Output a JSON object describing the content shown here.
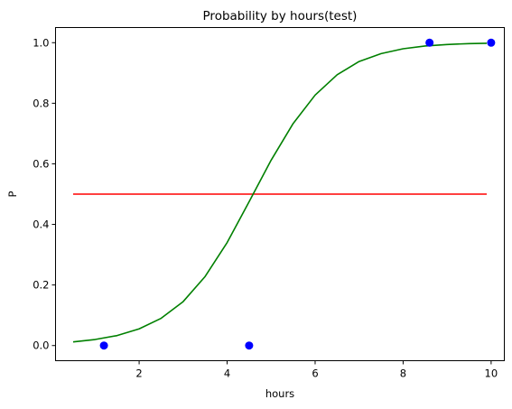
{
  "chart_data": {
    "type": "line",
    "title": "Probability by hours(test)",
    "xlabel": "hours",
    "ylabel": "P",
    "xlim": [
      0.1,
      10.3
    ],
    "ylim": [
      -0.05,
      1.05
    ],
    "xticks": [
      2,
      4,
      6,
      8,
      10
    ],
    "yticks": [
      0.0,
      0.2,
      0.4,
      0.6,
      0.8,
      1.0
    ],
    "xtick_labels": [
      "2",
      "4",
      "6",
      "8",
      "10"
    ],
    "ytick_labels": [
      "0.0",
      "0.2",
      "0.4",
      "0.6",
      "0.8",
      "1.0"
    ],
    "grid": false,
    "scatter_points": {
      "color": "#0000ff",
      "x": [
        1.2,
        4.5,
        8.6,
        10.0
      ],
      "y": [
        0,
        0,
        1,
        1
      ]
    },
    "threshold_line": {
      "color": "#ff0000",
      "x": [
        0.5,
        9.9
      ],
      "y": [
        0.5,
        0.5
      ]
    },
    "logistic_curve": {
      "color": "#008000",
      "x": [
        0.5,
        1.0,
        1.5,
        2.0,
        2.5,
        3.0,
        3.5,
        4.0,
        4.5,
        5.0,
        5.5,
        6.0,
        6.5,
        7.0,
        7.5,
        8.0,
        8.5,
        9.0,
        9.5,
        9.9
      ],
      "y": [
        0.012,
        0.02,
        0.033,
        0.055,
        0.09,
        0.145,
        0.228,
        0.34,
        0.475,
        0.612,
        0.733,
        0.827,
        0.894,
        0.938,
        0.964,
        0.98,
        0.989,
        0.994,
        0.997,
        0.998
      ]
    }
  }
}
